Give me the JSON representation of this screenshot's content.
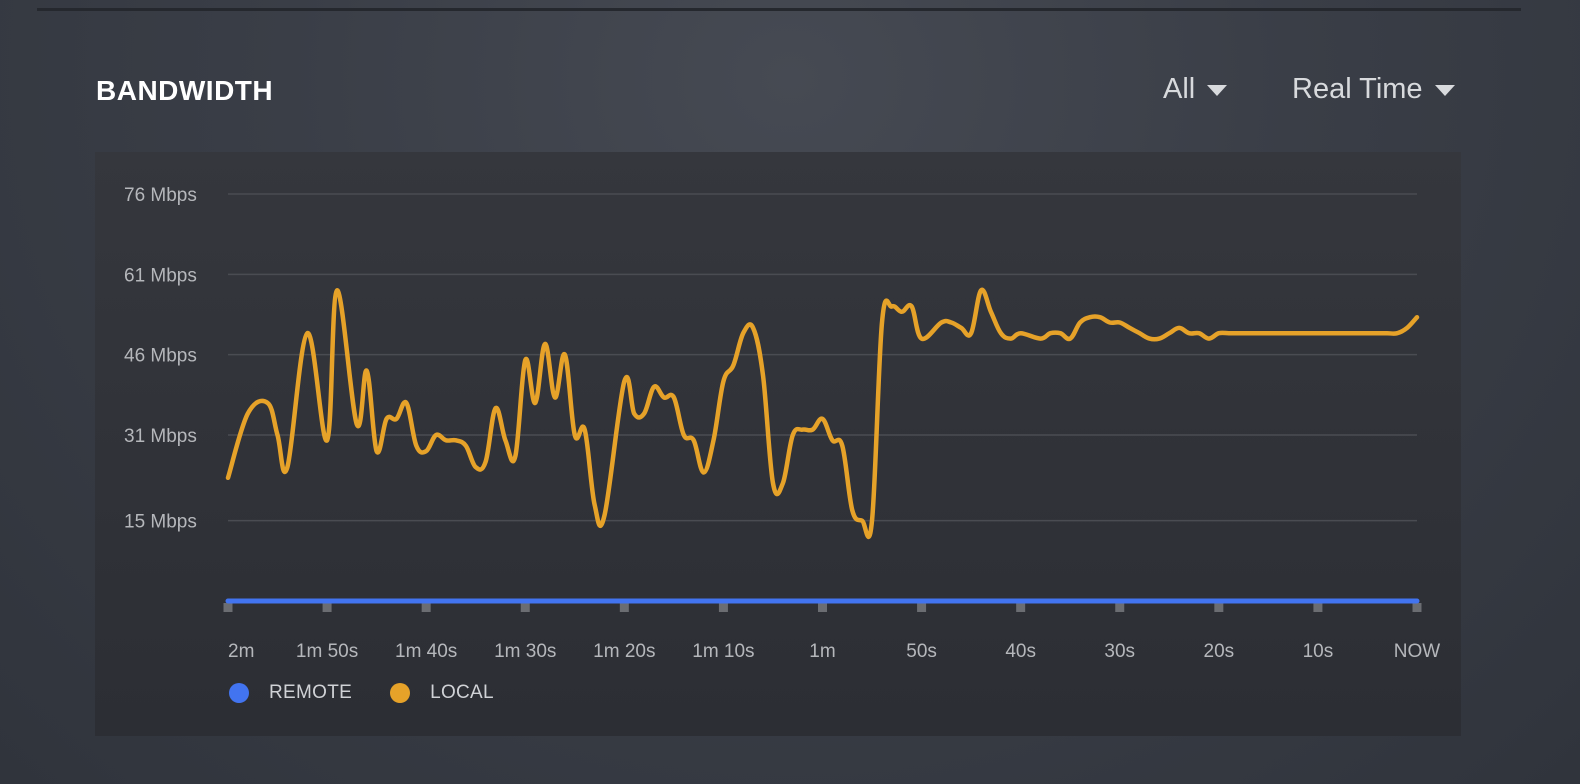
{
  "header": {
    "title": "BANDWIDTH",
    "filter_value": "All",
    "range_value": "Real Time"
  },
  "colors": {
    "remote": "#4274f0",
    "local": "#e6a229",
    "grid": "#4a4c52",
    "tick_label": "#b5b7bb"
  },
  "chart_data": {
    "type": "line",
    "title": "BANDWIDTH",
    "xlabel": "",
    "ylabel": "",
    "x_unit": "seconds ago",
    "xlim": [
      120,
      0
    ],
    "ylim": [
      0,
      76
    ],
    "y_ticks": [
      15,
      31,
      46,
      61,
      76
    ],
    "y_tick_labels": [
      "15 Mbps",
      "31 Mbps",
      "46 Mbps",
      "61 Mbps",
      "76 Mbps"
    ],
    "x_ticks": [
      120,
      110,
      100,
      90,
      80,
      70,
      60,
      50,
      40,
      30,
      20,
      10,
      0
    ],
    "x_tick_labels": [
      "2m",
      "1m 50s",
      "1m 40s",
      "1m 30s",
      "1m 20s",
      "1m 10s",
      "1m",
      "50s",
      "40s",
      "30s",
      "20s",
      "10s",
      "NOW"
    ],
    "grid": true,
    "legend_position": "bottom-left",
    "series": [
      {
        "name": "REMOTE",
        "x": [
          120,
          0
        ],
        "y": [
          0,
          0
        ]
      },
      {
        "name": "LOCAL",
        "x": [
          120,
          118,
          116,
          115,
          114,
          112,
          110,
          109,
          107,
          106,
          105,
          104,
          103,
          102,
          101,
          100,
          99,
          98,
          97,
          96,
          95,
          94,
          93,
          92,
          91,
          90,
          89,
          88,
          87,
          86,
          85,
          84,
          83,
          82,
          80,
          79,
          78,
          77,
          76,
          75,
          74,
          73,
          72,
          71,
          70,
          69,
          68,
          67,
          66,
          65,
          64,
          63,
          62,
          61,
          60,
          59,
          58,
          57,
          56,
          55,
          54,
          53,
          52,
          51,
          50,
          48,
          47,
          46,
          45,
          44,
          43,
          42,
          41,
          40,
          38,
          37,
          36,
          35,
          34,
          33,
          32,
          31,
          30,
          29,
          28,
          27,
          26,
          25,
          24,
          23,
          22,
          21,
          20,
          19,
          18,
          17,
          16,
          14,
          13,
          12,
          11,
          10,
          9,
          8,
          7,
          6,
          5,
          4,
          3,
          2,
          1,
          0
        ],
        "y": [
          23,
          35,
          37,
          31,
          25,
          50,
          30,
          58,
          33,
          43,
          28,
          34,
          34,
          37,
          29,
          28,
          31,
          30,
          30,
          29,
          25,
          26,
          36,
          30,
          27,
          45,
          37,
          48,
          38,
          46,
          31,
          32,
          18,
          16,
          41,
          35,
          35,
          40,
          38,
          38,
          31,
          30,
          24,
          30,
          41,
          44,
          50,
          51,
          42,
          22,
          22,
          31,
          32,
          32,
          34,
          30,
          29,
          17,
          15,
          15,
          52,
          55,
          54,
          55,
          49,
          52,
          52,
          51,
          50,
          58,
          54,
          50,
          49,
          50,
          49,
          50,
          50,
          49,
          52,
          53,
          53,
          52,
          52,
          51,
          50,
          49,
          49,
          50,
          51,
          50,
          50,
          49,
          50,
          50,
          50,
          50,
          50,
          50,
          50,
          50,
          50,
          50,
          50,
          50,
          50,
          50,
          50,
          50,
          50,
          50,
          51,
          53
        ]
      }
    ]
  }
}
